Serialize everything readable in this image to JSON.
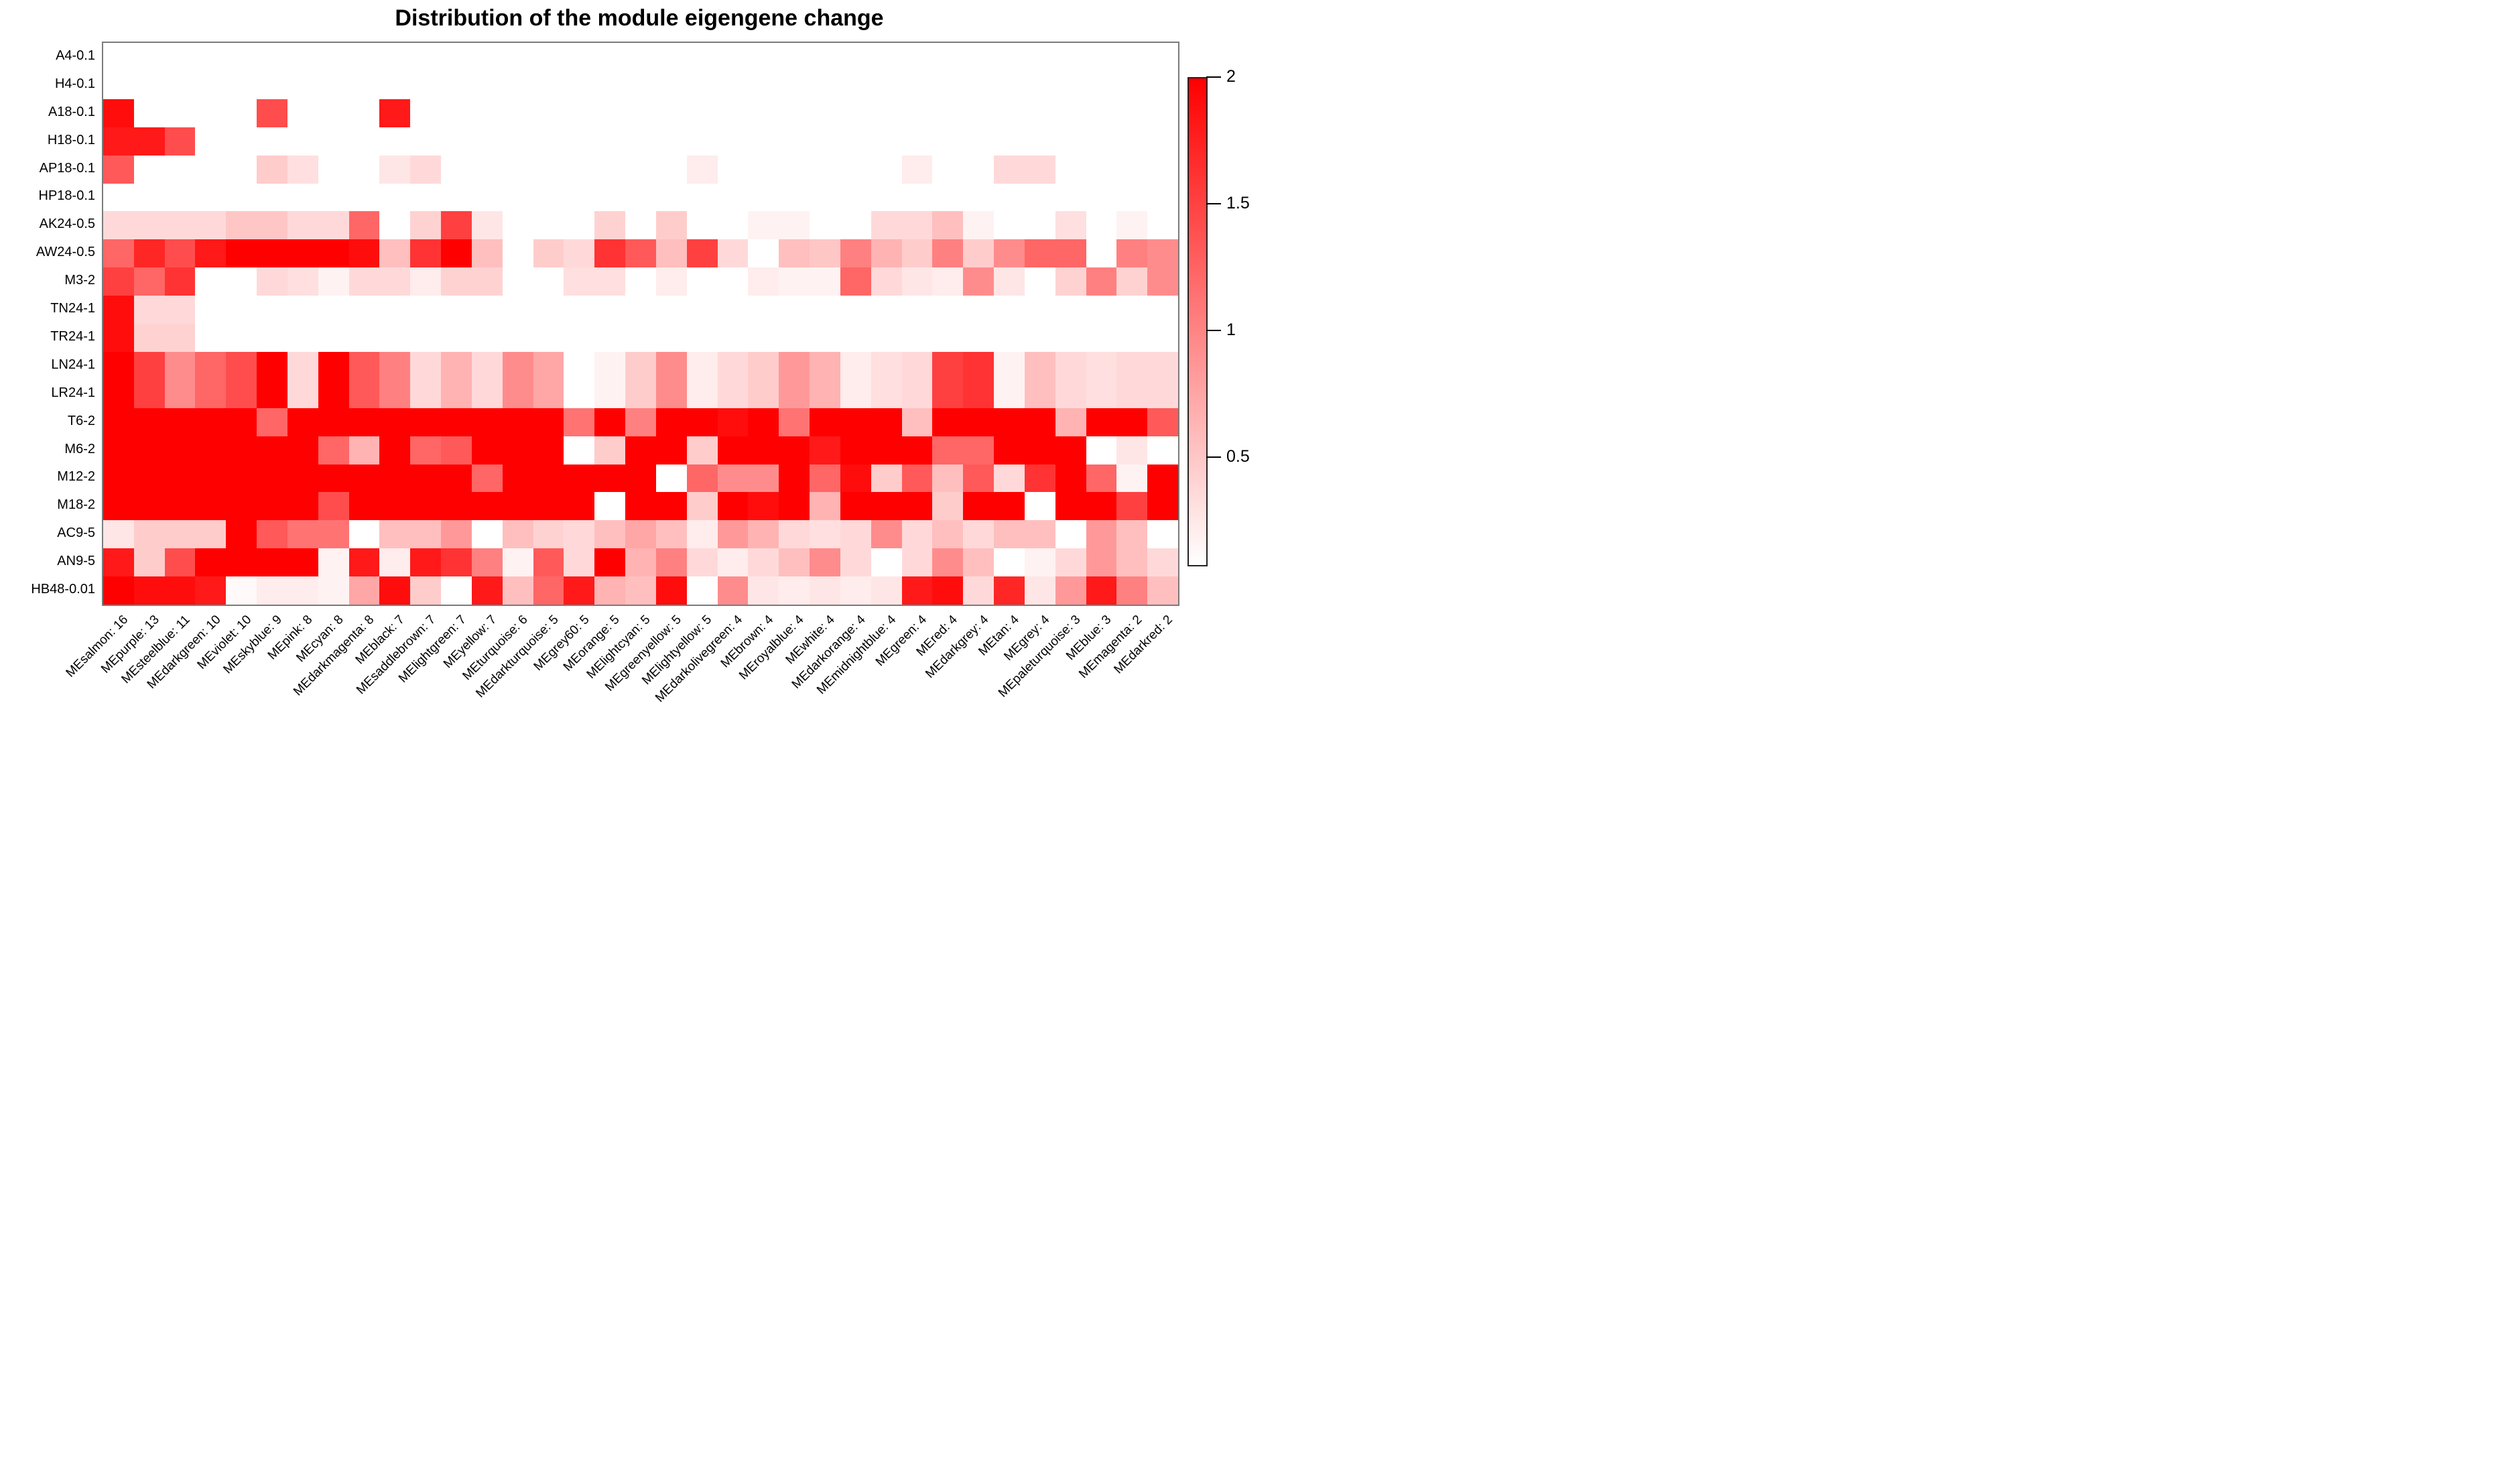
{
  "title": "Distribution of the module eigengene change",
  "chart_data": {
    "type": "heatmap",
    "title": "Distribution of the module eigengene change",
    "rows": [
      "A4-0.1",
      "H4-0.1",
      "A18-0.1",
      "H18-0.1",
      "AP18-0.1",
      "HP18-0.1",
      "AK24-0.5",
      "AW24-0.5",
      "M3-2",
      "TN24-1",
      "TR24-1",
      "LN24-1",
      "LR24-1",
      "T6-2",
      "M6-2",
      "M12-2",
      "M18-2",
      "AC9-5",
      "AN9-5",
      "HB48-0.01"
    ],
    "columns": [
      "MEsalmon: 16",
      "MEpurple: 13",
      "MEsteelblue: 11",
      "MEdarkgreen: 10",
      "MEviolet: 10",
      "MEskyblue: 9",
      "MEpink: 8",
      "MEcyan: 8",
      "MEdarkmagenta: 8",
      "MEblack: 7",
      "MEsaddlebrown: 7",
      "MElightgreen: 7",
      "MEyellow: 7",
      "MEturquoise: 6",
      "MEdarkturquoise: 5",
      "MEgrey60: 5",
      "MEorange: 5",
      "MElightcyan: 5",
      "MEgreenyellow: 5",
      "MElightyellow: 5",
      "MEdarkolivegreen: 4",
      "MEbrown: 4",
      "MEroyalblue: 4",
      "MEwhite: 4",
      "MEdarkorange: 4",
      "MEmidnightblue: 4",
      "MEgreen: 4",
      "MEred: 4",
      "MEdarkgrey: 4",
      "MEtan: 4",
      "MEgrey: 4",
      "MEpaleturquoise: 3",
      "MEblue: 3",
      "MEmagenta: 2",
      "MEdarkred: 2"
    ],
    "values": [
      [
        0,
        0,
        0,
        0,
        0,
        0,
        0,
        0,
        0,
        0,
        0,
        0,
        0,
        0,
        0,
        0,
        0,
        0,
        0,
        0,
        0,
        0,
        0,
        0,
        0,
        0,
        0,
        0,
        0,
        0,
        0,
        0,
        0,
        0,
        0
      ],
      [
        0,
        0,
        0,
        0,
        0,
        0,
        0,
        0,
        0,
        0,
        0,
        0,
        0,
        0,
        0,
        0,
        0,
        0,
        0,
        0,
        0,
        0,
        0,
        0,
        0,
        0,
        0,
        0,
        0,
        0,
        0,
        0,
        0,
        0,
        0
      ],
      [
        1.9,
        0,
        0,
        0,
        0,
        1.4,
        0,
        0,
        0,
        1.8,
        0,
        0,
        0,
        0,
        0,
        0,
        0,
        0,
        0,
        0,
        0,
        0,
        0,
        0,
        0,
        0,
        0,
        0,
        0,
        0,
        0,
        0,
        0,
        0,
        0
      ],
      [
        1.8,
        1.8,
        1.4,
        0,
        0,
        0,
        0,
        0,
        0,
        0,
        0,
        0,
        0,
        0,
        0,
        0,
        0,
        0,
        0,
        0,
        0,
        0,
        0,
        0,
        0,
        0,
        0,
        0,
        0,
        0,
        0,
        0,
        0,
        0,
        0
      ],
      [
        1.3,
        0,
        0,
        0,
        0,
        0.4,
        0.25,
        0,
        0,
        0.2,
        0.3,
        0,
        0,
        0,
        0,
        0,
        0,
        0,
        0,
        0.15,
        0,
        0,
        0,
        0,
        0,
        0,
        0.15,
        0,
        0,
        0.3,
        0.3,
        0,
        0,
        0,
        0
      ],
      [
        0,
        0,
        0,
        0,
        0,
        0,
        0,
        0,
        0,
        0,
        0,
        0,
        0,
        0,
        0,
        0,
        0,
        0,
        0,
        0,
        0,
        0,
        0,
        0,
        0,
        0,
        0,
        0,
        0,
        0,
        0,
        0,
        0,
        0,
        0
      ],
      [
        0.3,
        0.3,
        0.3,
        0.3,
        0.45,
        0.45,
        0.3,
        0.3,
        1.2,
        0,
        0.35,
        1.5,
        0.2,
        0,
        0,
        0,
        0.35,
        0,
        0.4,
        0,
        0,
        0.1,
        0.1,
        0,
        0,
        0.3,
        0.3,
        0.5,
        0.1,
        0,
        0,
        0.25,
        0,
        0.1,
        0
      ],
      [
        1.2,
        1.7,
        1.4,
        1.8,
        2,
        2,
        2,
        2,
        1.9,
        0.5,
        1.6,
        2,
        0.5,
        0,
        0.4,
        0.3,
        1.6,
        1.3,
        0.5,
        1.5,
        0.3,
        0,
        0.5,
        0.45,
        1,
        0.6,
        0.4,
        1,
        0.4,
        0.9,
        1.2,
        1.2,
        0,
        1,
        0.9
      ],
      [
        1.5,
        1.2,
        1.6,
        0,
        0,
        0.3,
        0.25,
        0.1,
        0.3,
        0.3,
        0.15,
        0.35,
        0.35,
        0,
        0,
        0.25,
        0.25,
        0,
        0.15,
        0,
        0,
        0.15,
        0.1,
        0.1,
        1.2,
        0.3,
        0.2,
        0.15,
        0.9,
        0.2,
        0,
        0.35,
        1,
        0.35,
        0.9
      ],
      [
        1.9,
        0.3,
        0.3,
        0,
        0,
        0,
        0,
        0,
        0,
        0,
        0,
        0,
        0,
        0,
        0,
        0,
        0,
        0,
        0,
        0,
        0,
        0,
        0,
        0,
        0,
        0,
        0,
        0,
        0,
        0,
        0,
        0,
        0,
        0,
        0
      ],
      [
        1.9,
        0.35,
        0.35,
        0,
        0,
        0,
        0,
        0,
        0,
        0,
        0,
        0,
        0,
        0,
        0,
        0,
        0,
        0,
        0,
        0,
        0,
        0,
        0,
        0,
        0,
        0,
        0,
        0,
        0,
        0,
        0,
        0,
        0,
        0,
        0
      ],
      [
        2,
        1.5,
        0.9,
        1.2,
        1.4,
        2,
        0.3,
        2,
        1.3,
        1,
        0.3,
        0.6,
        0.3,
        0.9,
        0.7,
        0,
        0.1,
        0.4,
        0.9,
        0.15,
        0.3,
        0.4,
        0.8,
        0.6,
        0.15,
        0.25,
        0.3,
        1.5,
        1.6,
        0.1,
        0.5,
        0.3,
        0.25,
        0.3,
        0.3
      ],
      [
        2,
        1.5,
        0.9,
        1.2,
        1.4,
        2,
        0.3,
        2,
        1.3,
        1,
        0.3,
        0.6,
        0.3,
        0.9,
        0.7,
        0,
        0.1,
        0.4,
        0.9,
        0.15,
        0.3,
        0.4,
        0.8,
        0.6,
        0.15,
        0.25,
        0.3,
        1.5,
        1.6,
        0.1,
        0.5,
        0.3,
        0.25,
        0.3,
        0.3
      ],
      [
        2,
        2,
        2,
        2,
        2,
        1.2,
        2,
        2,
        2,
        2,
        2,
        2,
        2,
        2,
        2,
        1.1,
        2,
        1,
        2,
        2,
        1.9,
        2,
        1.1,
        2,
        2,
        2,
        0.5,
        2,
        2,
        2,
        2,
        0.6,
        2,
        2,
        1.3
      ],
      [
        2,
        2,
        2,
        2,
        2,
        2,
        2,
        1.2,
        0.6,
        2,
        1.2,
        1.3,
        2,
        2,
        2,
        0,
        0.4,
        2,
        2,
        0.4,
        2,
        2,
        2,
        1.8,
        2,
        2,
        2,
        1.2,
        1.2,
        2,
        2,
        2,
        0,
        0.2,
        0
      ],
      [
        2,
        2,
        2,
        2,
        2,
        2,
        2,
        2,
        2,
        2,
        2,
        2,
        1.2,
        2,
        2,
        2,
        2,
        2,
        0,
        1.2,
        0.9,
        0.9,
        2,
        1.2,
        1.9,
        0.4,
        1.3,
        0.5,
        1.3,
        0.3,
        1.6,
        2,
        1.2,
        0.1,
        2
      ],
      [
        2,
        2,
        2,
        2,
        2,
        2,
        2,
        1.4,
        2,
        2,
        2,
        2,
        2,
        2,
        2,
        2,
        0,
        2,
        2,
        0.4,
        2,
        1.9,
        2,
        0.6,
        2,
        2,
        2,
        0.4,
        2,
        2,
        0,
        2,
        2,
        1.5,
        2
      ],
      [
        0.2,
        0.4,
        0.4,
        0.4,
        2,
        1.3,
        1.1,
        1.1,
        0,
        0.5,
        0.5,
        0.8,
        0,
        0.5,
        0.35,
        0.3,
        0.5,
        0.7,
        0.5,
        0.15,
        0.8,
        0.6,
        0.3,
        0.25,
        0.3,
        0.9,
        0.3,
        0.5,
        0.3,
        0.5,
        0.5,
        0,
        0.8,
        0.5,
        0
      ],
      [
        1.8,
        0.4,
        1.4,
        2,
        2,
        2,
        2,
        0.1,
        1.8,
        0.15,
        1.8,
        1.6,
        1,
        0.1,
        1.3,
        0.3,
        2,
        0.6,
        1,
        0.3,
        0.15,
        0.3,
        0.5,
        0.9,
        0.3,
        0,
        0.3,
        0.9,
        0.5,
        0,
        0.1,
        0.3,
        0.8,
        0.5,
        0.3
      ],
      [
        2,
        1.9,
        1.9,
        1.8,
        0.05,
        0.15,
        0.15,
        0.1,
        0.7,
        1.9,
        0.4,
        0,
        1.8,
        0.5,
        1.2,
        1.8,
        0.6,
        0.5,
        1.9,
        0,
        0.9,
        0.2,
        0.15,
        0.2,
        0.15,
        0.2,
        1.8,
        1.9,
        0.3,
        1.7,
        0.2,
        0.8,
        1.8,
        1,
        0.5
      ]
    ],
    "vmin": 0,
    "vmax": 2,
    "colorbar": {
      "position": "right",
      "top_color": "#FF0000",
      "bottom_color": "#FFFFFF",
      "tick_labels": [
        "2",
        "1.5",
        "1",
        "0.5"
      ],
      "tick_values": [
        2,
        1.5,
        1,
        0.5
      ]
    },
    "xlabel": "",
    "ylabel": "",
    "grid": false
  }
}
